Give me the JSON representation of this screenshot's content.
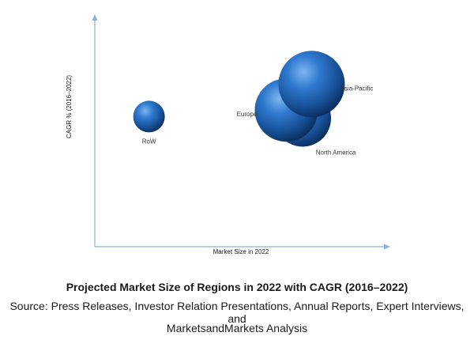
{
  "chart_data": {
    "type": "bubble",
    "xlabel": "Market Size in 2022",
    "ylabel": "CAGR % (2016–2022)",
    "grid": false,
    "legend": "none",
    "points": [
      {
        "name": "RoW",
        "x": 1.5,
        "y": 4.0,
        "size": 1.0
      },
      {
        "name": "Europe",
        "x": 5.3,
        "y": 4.2,
        "size": 2.0
      },
      {
        "name": "North America",
        "x": 5.75,
        "y": 3.95,
        "size": 1.8
      },
      {
        "name": "Asia-Pacific",
        "x": 6.0,
        "y": 5.0,
        "size": 2.1
      }
    ],
    "xlim": [
      0,
      8
    ],
    "ylim": [
      0,
      7
    ],
    "bubble_color": "#1f63b0"
  },
  "caption": {
    "title": "Projected Market Size of Regions in 2022 with CAGR (2016–2022)",
    "source_line1": "Source: Press Releases, Investor Relation Presentations, Annual Reports, Expert Interviews, and",
    "source_line2": "MarketsandMarkets Analysis"
  }
}
